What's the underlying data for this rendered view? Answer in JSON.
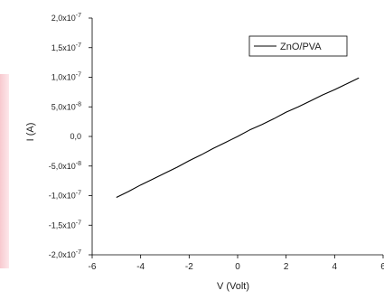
{
  "chart_data": {
    "type": "line",
    "xlabel": "V (Volt)",
    "ylabel": "I (A)",
    "xlim": [
      -6,
      6
    ],
    "ylim": [
      -2e-07,
      2e-07
    ],
    "x_ticks": [
      {
        "value": -6,
        "label": "-6"
      },
      {
        "value": -4,
        "label": "-4"
      },
      {
        "value": -2,
        "label": "-2"
      },
      {
        "value": 0,
        "label": "0"
      },
      {
        "value": 2,
        "label": "2"
      },
      {
        "value": 4,
        "label": "4"
      },
      {
        "value": 6,
        "label": "6"
      }
    ],
    "y_ticks": [
      {
        "value": 2e-07,
        "label": "2,0x10-7",
        "mantissa": "2,0x10",
        "exp": "-7"
      },
      {
        "value": 1.5e-07,
        "label": "1,5x10-7",
        "mantissa": "1,5x10",
        "exp": "-7"
      },
      {
        "value": 1e-07,
        "label": "1,0x10-7",
        "mantissa": "1,0x10",
        "exp": "-7"
      },
      {
        "value": 5e-08,
        "label": "5,0x10-8",
        "mantissa": "5,0x10",
        "exp": "-8"
      },
      {
        "value": 0,
        "label": "0,0",
        "mantissa": "0,0",
        "exp": ""
      },
      {
        "value": -5e-08,
        "label": "-5,0x10-8",
        "mantissa": "-5,0x10",
        "exp": "-8"
      },
      {
        "value": -1e-07,
        "label": "-1,0x10-7",
        "mantissa": "-1,0x10",
        "exp": "-7"
      },
      {
        "value": -1.5e-07,
        "label": "-1,5x10-7",
        "mantissa": "-1,5x10",
        "exp": "-7"
      },
      {
        "value": -2e-07,
        "label": "-2,0x10-7",
        "mantissa": "-2,0x10",
        "exp": "-7"
      }
    ],
    "series": [
      {
        "name": "ZnO/PVA",
        "color": "#000000",
        "x": [
          -5,
          -4.5,
          -4,
          -3.5,
          -3,
          -2.5,
          -2,
          -1.5,
          -1,
          -0.5,
          0,
          0.5,
          1,
          1.5,
          2,
          2.5,
          3,
          3.5,
          4,
          4.5,
          5
        ],
        "y": [
          -1.03e-07,
          -9.3e-08,
          -8.2e-08,
          -7.2e-08,
          -6.2e-08,
          -5.2e-08,
          -4.1e-08,
          -3.1e-08,
          -2e-08,
          -1e-08,
          0,
          1.1e-08,
          2e-08,
          3e-08,
          4.1e-08,
          5e-08,
          6e-08,
          7e-08,
          7.9e-08,
          8.9e-08,
          9.9e-08
        ]
      }
    ],
    "legend": {
      "position": "top-right",
      "entry": "ZnO/PVA"
    },
    "grid": false
  },
  "style": {
    "axis_color": "#000000",
    "line_color": "#000000"
  }
}
